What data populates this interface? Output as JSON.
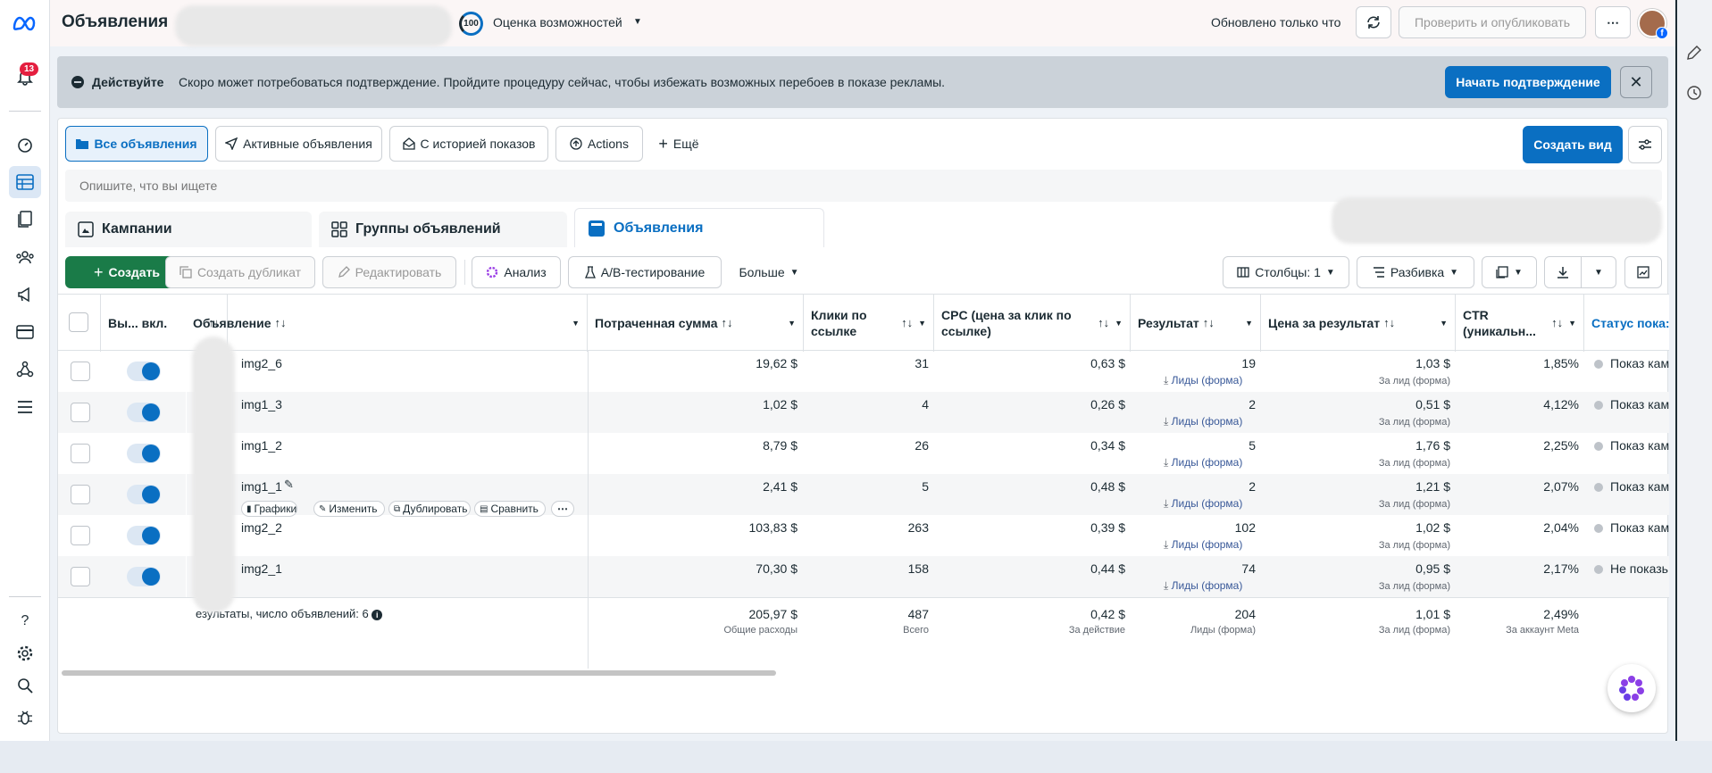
{
  "app": {
    "title": "Объявления"
  },
  "topbar": {
    "score": "100",
    "score_label": "Оценка возможностей",
    "updated": "Обновлено только что",
    "publish": "Проверить и опубликовать",
    "more": "⋯"
  },
  "nav": {
    "notifications_count": "13"
  },
  "banner": {
    "title": "Действуйте",
    "text": "Скоро может потребоваться подтверждение. Пройдите процедуру сейчас, чтобы избежать возможных перебоев в показе рекламы.",
    "action": "Начать подтверждение"
  },
  "views": {
    "tabs": [
      {
        "label": "Все объявления"
      },
      {
        "label": "Активные объявления"
      },
      {
        "label": "С историей показов"
      },
      {
        "label": "Actions"
      },
      {
        "label": "Ещё"
      }
    ],
    "create_view": "Создать вид"
  },
  "search": {
    "placeholder": "Опишите, что вы ищете"
  },
  "levels": [
    "Кампании",
    "Группы объявлений",
    "Объявления"
  ],
  "toolbar": {
    "create": "Создать",
    "duplicate": "Создать дубликат",
    "edit": "Редактировать",
    "analysis": "Анализ",
    "ab_test": "A/B-тестирование",
    "more": "Больше",
    "columns": "Столбцы: 1",
    "breakdown": "Разбивка"
  },
  "table": {
    "headers": {
      "onoff": "Вы... вкл.",
      "ad": "Объявление",
      "spent": "Потраченная сумма",
      "clicks": "Клики по ссылке",
      "cpc": "CPC (цена за клик по ссылке)",
      "result": "Результат",
      "cost_per_result": "Цена за результат",
      "ctr": "CTR (уникальн...",
      "status": "Статус пока:"
    },
    "rows": [
      {
        "name": "img2_6",
        "spent": "19,62 $",
        "clicks": "31",
        "cpc": "0,63 $",
        "result": "19",
        "result_type": "Лиды (форма)",
        "cost": "1,03 $",
        "cost_sub": "За лид (форма)",
        "ctr": "1,85%",
        "status": "Показ кам"
      },
      {
        "name": "img1_3",
        "spent": "1,02 $",
        "clicks": "4",
        "cpc": "0,26 $",
        "result": "2",
        "result_type": "Лиды (форма)",
        "cost": "0,51 $",
        "cost_sub": "За лид (форма)",
        "ctr": "4,12%",
        "status": "Показ кам"
      },
      {
        "name": "img1_2",
        "spent": "8,79 $",
        "clicks": "26",
        "cpc": "0,34 $",
        "result": "5",
        "result_type": "Лиды (форма)",
        "cost": "1,76 $",
        "cost_sub": "За лид (форма)",
        "ctr": "2,25%",
        "status": "Показ кам"
      },
      {
        "name": "img1_1",
        "spent": "2,41 $",
        "clicks": "5",
        "cpc": "0,48 $",
        "result": "2",
        "result_type": "Лиды (форма)",
        "cost": "1,21 $",
        "cost_sub": "За лид (форма)",
        "ctr": "2,07%",
        "status": "Показ кам"
      },
      {
        "name": "img2_2",
        "spent": "103,83 $",
        "clicks": "263",
        "cpc": "0,39 $",
        "result": "102",
        "result_type": "Лиды (форма)",
        "cost": "1,02 $",
        "cost_sub": "За лид (форма)",
        "ctr": "2,04%",
        "status": "Показ кам"
      },
      {
        "name": "img2_1",
        "spent": "70,30 $",
        "clicks": "158",
        "cpc": "0,44 $",
        "result": "74",
        "result_type": "Лиды (форма)",
        "cost": "0,95 $",
        "cost_sub": "За лид (форма)",
        "ctr": "2,17%",
        "status": "Не показь"
      }
    ],
    "row_actions": [
      "Графики",
      "Изменить",
      "Дублировать",
      "Сравнить"
    ],
    "totals": {
      "label": "езультаты, число объявлений: 6",
      "spent": "205,97 $",
      "spent_sub": "Общие расходы",
      "clicks": "487",
      "clicks_sub": "Всего",
      "cpc": "0,42 $",
      "cpc_sub": "За действие",
      "result": "204",
      "result_sub": "Лиды (форма)",
      "cost": "1,01 $",
      "cost_sub": "За лид (форма)",
      "ctr": "2,49%",
      "ctr_sub": "За аккаунт Meta"
    }
  },
  "colors": {
    "accent": "#0a6fc2",
    "create": "#1a7b48",
    "banner": "#cbd2d9",
    "badge": "#e41e3f"
  }
}
